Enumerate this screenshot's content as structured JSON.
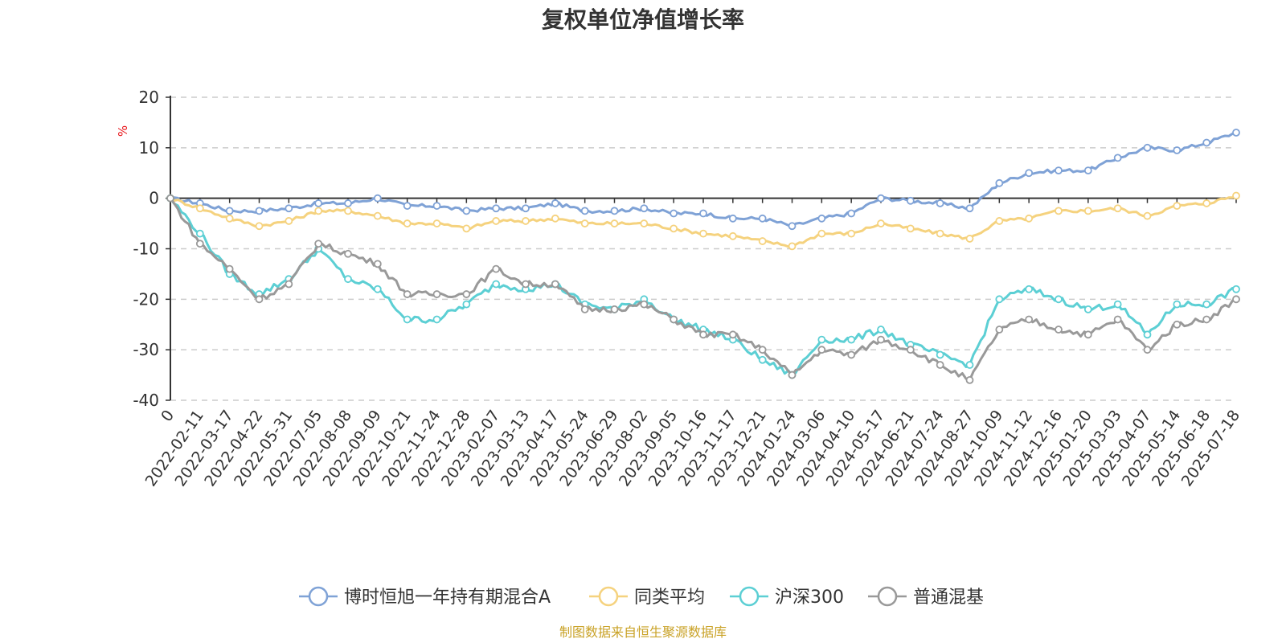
{
  "chart_data": {
    "type": "line",
    "title": "复权单位净值增长率",
    "ylabel": "%",
    "ylim": [
      -40,
      20
    ],
    "yticks": [
      -40,
      -30,
      -20,
      -10,
      0,
      10,
      20
    ],
    "grid": true,
    "legend_position": "bottom",
    "source_note": "制图数据来自恒生聚源数据库",
    "x": [
      "0",
      "2022-02-11",
      "2022-03-17",
      "2022-04-22",
      "2022-05-31",
      "2022-07-05",
      "2022-08-08",
      "2022-09-09",
      "2022-10-21",
      "2022-11-24",
      "2022-12-28",
      "2023-02-07",
      "2023-03-13",
      "2023-04-17",
      "2023-05-24",
      "2023-06-29",
      "2023-08-02",
      "2023-09-05",
      "2023-10-16",
      "2023-11-17",
      "2023-12-21",
      "2024-01-24",
      "2024-03-06",
      "2024-04-10",
      "2024-05-17",
      "2024-06-21",
      "2024-07-24",
      "2024-08-27",
      "2024-10-09",
      "2024-11-12",
      "2024-12-16",
      "2025-01-20",
      "2025-03-03",
      "2025-04-07",
      "2025-05-14",
      "2025-06-18",
      "2025-07-18"
    ],
    "series": [
      {
        "name": "博时恒旭一年持有期混合A",
        "color": "#7fa2d6",
        "values": [
          0,
          -1,
          -2.5,
          -2.5,
          -2,
          -1,
          -1,
          0,
          -1.5,
          -1.5,
          -2.5,
          -2,
          -2,
          -1,
          -2.5,
          -2.5,
          -2,
          -3,
          -3,
          -4,
          -4,
          -5.5,
          -4,
          -3,
          0,
          -0.5,
          -1,
          -2,
          3,
          5,
          5.5,
          5.5,
          8,
          10,
          9.5,
          11,
          13
        ]
      },
      {
        "name": "同类平均",
        "color": "#f5d27e",
        "values": [
          0,
          -2,
          -4,
          -5.5,
          -4.5,
          -2.5,
          -2.5,
          -3.5,
          -5,
          -5,
          -6,
          -4.5,
          -4.5,
          -4,
          -5,
          -5,
          -5,
          -6,
          -7,
          -7.5,
          -8.5,
          -9.5,
          -7,
          -7,
          -5,
          -6,
          -7,
          -8,
          -4.5,
          -4,
          -2.5,
          -2.5,
          -2,
          -3.5,
          -1.5,
          -1,
          0.5
        ]
      },
      {
        "name": "沪深300",
        "color": "#5ccfd4",
        "values": [
          0,
          -7,
          -15,
          -19,
          -16,
          -10,
          -16,
          -18,
          -24,
          -24,
          -21,
          -17,
          -18,
          -17,
          -21,
          -22,
          -20,
          -24,
          -26,
          -28,
          -32,
          -35,
          -28,
          -28,
          -26,
          -29,
          -31,
          -33,
          -20,
          -18,
          -20,
          -22,
          -21,
          -27,
          -21,
          -21,
          -18
        ]
      },
      {
        "name": "普通混基",
        "color": "#999999",
        "values": [
          0,
          -9,
          -14,
          -20,
          -17,
          -9,
          -11,
          -13,
          -19,
          -19,
          -19,
          -14,
          -17,
          -17,
          -22,
          -22,
          -21,
          -24,
          -27,
          -27,
          -30,
          -35,
          -30,
          -31,
          -28,
          -30,
          -33,
          -36,
          -26,
          -24,
          -26,
          -27,
          -24,
          -30,
          -25,
          -24,
          -20
        ]
      }
    ]
  }
}
